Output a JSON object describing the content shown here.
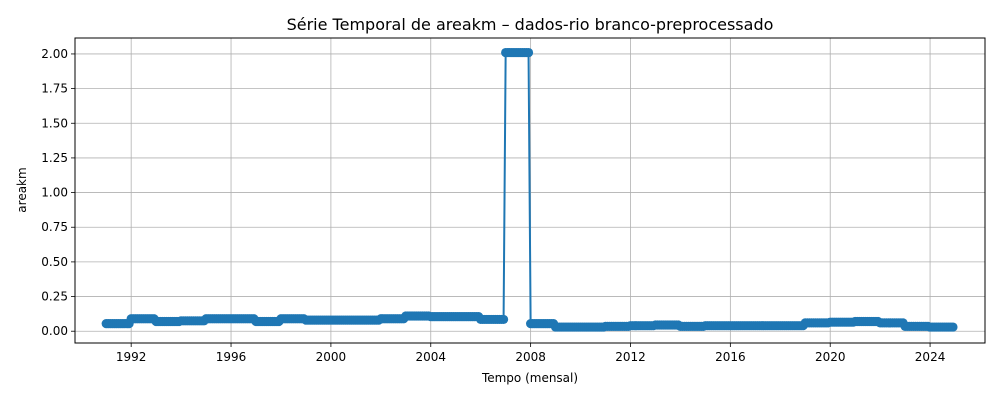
{
  "chart_data": {
    "type": "line",
    "title": "Série Temporal de areakm – dados-rio branco-preprocessado",
    "xlabel": "Tempo (mensal)",
    "ylabel": "areakm",
    "x_ticks": [
      "1992",
      "1996",
      "2000",
      "2004",
      "2008",
      "2012",
      "2016",
      "2020",
      "2024"
    ],
    "y_ticks": [
      "0.00",
      "0.25",
      "0.50",
      "0.75",
      "1.00",
      "1.25",
      "1.50",
      "1.75",
      "2.00"
    ],
    "xlim": [
      1989.75,
      2026.2
    ],
    "ylim": [
      -0.085,
      2.115
    ],
    "grid": true,
    "color": "#1f77b4",
    "marker": "circle",
    "series": [
      {
        "values": [
          {
            "year": 1991,
            "value": 0.055
          },
          {
            "year": 1992,
            "value": 0.09
          },
          {
            "year": 1993,
            "value": 0.07
          },
          {
            "year": 1994,
            "value": 0.075
          },
          {
            "year": 1995,
            "value": 0.09
          },
          {
            "year": 1996,
            "value": 0.09
          },
          {
            "year": 1997,
            "value": 0.07
          },
          {
            "year": 1998,
            "value": 0.09
          },
          {
            "year": 1999,
            "value": 0.08
          },
          {
            "year": 2000,
            "value": 0.08
          },
          {
            "year": 2001,
            "value": 0.08
          },
          {
            "year": 2002,
            "value": 0.09
          },
          {
            "year": 2003,
            "value": 0.11
          },
          {
            "year": 2004,
            "value": 0.105
          },
          {
            "year": 2005,
            "value": 0.105
          },
          {
            "year": 2006,
            "value": 0.085
          },
          {
            "year": 2007,
            "value": 2.01
          },
          {
            "year": 2008,
            "value": 0.055
          },
          {
            "year": 2009,
            "value": 0.03
          },
          {
            "year": 2010,
            "value": 0.03
          },
          {
            "year": 2011,
            "value": 0.035
          },
          {
            "year": 2012,
            "value": 0.04
          },
          {
            "year": 2013,
            "value": 0.045
          },
          {
            "year": 2014,
            "value": 0.035
          },
          {
            "year": 2015,
            "value": 0.04
          },
          {
            "year": 2016,
            "value": 0.04
          },
          {
            "year": 2017,
            "value": 0.04
          },
          {
            "year": 2018,
            "value": 0.04
          },
          {
            "year": 2019,
            "value": 0.06
          },
          {
            "year": 2020,
            "value": 0.065
          },
          {
            "year": 2021,
            "value": 0.07
          },
          {
            "year": 2022,
            "value": 0.06
          },
          {
            "year": 2023,
            "value": 0.035
          },
          {
            "year": 2024,
            "value": 0.03
          }
        ]
      }
    ]
  }
}
